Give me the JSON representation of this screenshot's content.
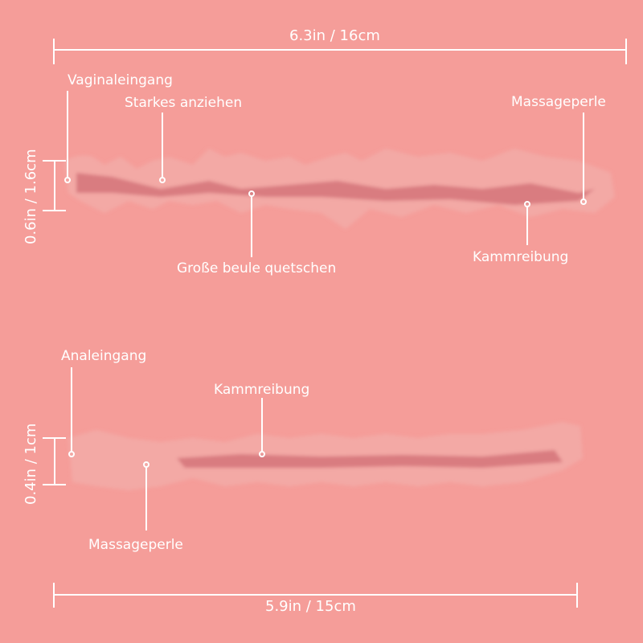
{
  "colors": {
    "background": "#f59d99",
    "canal_dark": "#dd7f82",
    "canal_light": "#f7b3ad",
    "annotation": "#ffffff"
  },
  "top_canal": {
    "length": "6.3in / 16cm",
    "width": "0.6in / 1.6cm",
    "labels": {
      "entrance": "Vaginaleingang",
      "suction": "Starkes anziehen",
      "bump": "Große beule quetschen",
      "bead": "Massageperle",
      "ridge": "Kammreibung"
    }
  },
  "bottom_canal": {
    "length": "5.9in / 15cm",
    "width": "0.4in / 1cm",
    "labels": {
      "entrance": "Analeingang",
      "ridge": "Kammreibung",
      "bead": "Massageperle"
    }
  }
}
